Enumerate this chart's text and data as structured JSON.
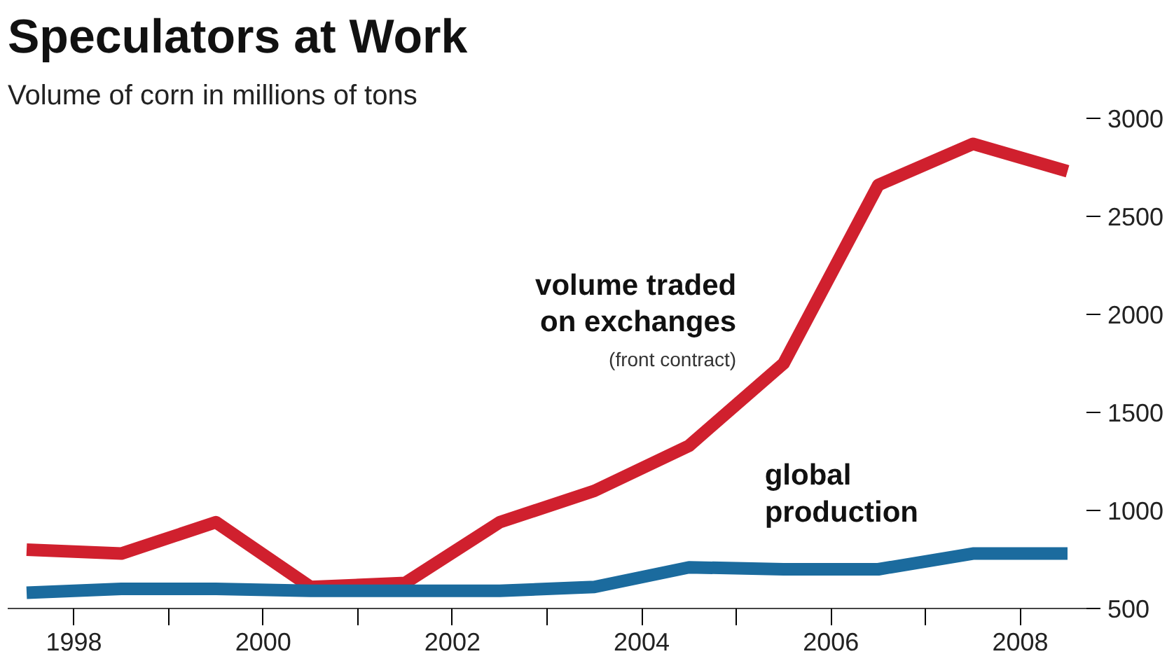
{
  "chart_data": {
    "type": "line",
    "title": "Speculators at Work",
    "subtitle": "Volume of corn in millions of tons",
    "x": [
      1997.5,
      1998.5,
      1999.5,
      2000.5,
      2001.5,
      2002.5,
      2003.5,
      2004.5,
      2005.5,
      2006.5,
      2007.5,
      2008.5
    ],
    "series": [
      {
        "name": "volume traded on exchanges",
        "color": "#d0202e",
        "values": [
          800,
          780,
          940,
          610,
          630,
          940,
          1100,
          1330,
          1750,
          2660,
          2870,
          2730
        ]
      },
      {
        "name": "global production",
        "color": "#1b6b9e",
        "values": [
          580,
          600,
          600,
          590,
          590,
          590,
          610,
          710,
          700,
          700,
          780,
          780
        ]
      }
    ],
    "annotations": [
      "(front contract)"
    ],
    "xticks": [
      1998,
      {
        "value": 1999,
        "label": null
      },
      2000,
      {
        "value": 2001,
        "label": null
      },
      2002,
      {
        "value": 2003,
        "label": null
      },
      2004,
      {
        "value": 2005,
        "label": null
      },
      2006,
      {
        "value": 2007,
        "label": null
      },
      2008
    ],
    "yticks": [
      500,
      1000,
      1500,
      2000,
      2500,
      3000
    ],
    "xlim": [
      1997.3,
      2008.7
    ],
    "ylim": [
      500,
      3000
    ],
    "grid": false
  }
}
